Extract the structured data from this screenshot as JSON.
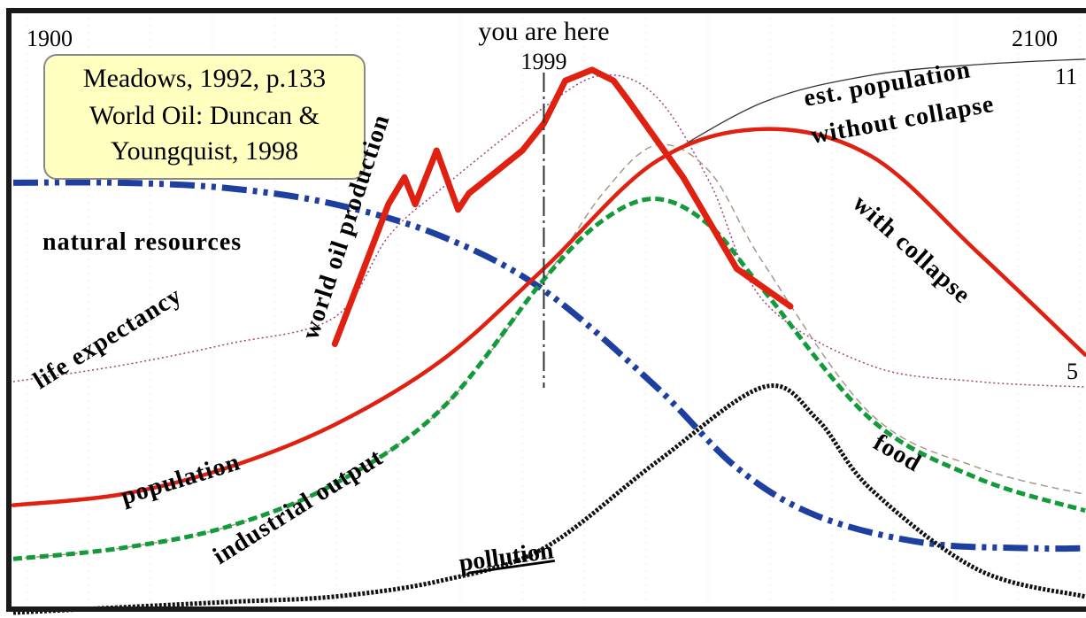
{
  "chart_data": {
    "type": "line",
    "title": "",
    "x_range": [
      1900,
      2100
    ],
    "x_ticks": [
      "1900",
      "2100"
    ],
    "marker": {
      "label": "you are here",
      "year_label": "1999",
      "x": 1999
    },
    "citation": [
      "Meadows, 1992, p.133",
      "World Oil: Duncan &",
      "Youngquist, 1998"
    ],
    "right_edge_labels": {
      "top": "11",
      "bottom": "5"
    },
    "annotations": {
      "est_population": [
        "est. population",
        "without collapse"
      ],
      "with_collapse": "with collapse"
    },
    "colors": {
      "frame": "#1a1a1a",
      "citation_box": "#ffffc0",
      "population": "#e02010",
      "oil": "#e02010",
      "natural_resources": "#1f3fa0",
      "food": "#139a3a",
      "pollution": "#111111",
      "life_expectancy": "#a0407a",
      "industrial_output": "#a89888",
      "est_population": "#333333"
    },
    "series": [
      {
        "name": "natural resources",
        "x": [
          1900,
          1920,
          1940,
          1960,
          1980,
          1999,
          2020,
          2035,
          2050,
          2070,
          2090,
          2100
        ],
        "y": [
          0.8,
          0.8,
          0.79,
          0.76,
          0.7,
          0.6,
          0.42,
          0.27,
          0.18,
          0.13,
          0.12,
          0.12
        ]
      },
      {
        "name": "population",
        "x": [
          1900,
          1920,
          1940,
          1960,
          1980,
          1999,
          2020,
          2040,
          2060,
          2080,
          2100
        ],
        "y": [
          0.2,
          0.22,
          0.27,
          0.35,
          0.47,
          0.64,
          0.84,
          0.9,
          0.85,
          0.67,
          0.48
        ]
      },
      {
        "name": "industrial output",
        "x": [
          1900,
          1920,
          1940,
          1960,
          1980,
          1999,
          2010,
          2020,
          2030,
          2040,
          2060,
          2080,
          2100
        ],
        "y": [
          0.1,
          0.12,
          0.16,
          0.24,
          0.38,
          0.62,
          0.78,
          0.87,
          0.82,
          0.65,
          0.37,
          0.27,
          0.22
        ]
      },
      {
        "name": "food",
        "x": [
          1900,
          1920,
          1940,
          1960,
          1980,
          1999,
          2010,
          2020,
          2030,
          2040,
          2060,
          2080,
          2100
        ],
        "y": [
          0.1,
          0.12,
          0.16,
          0.24,
          0.38,
          0.62,
          0.73,
          0.77,
          0.72,
          0.6,
          0.36,
          0.25,
          0.19
        ]
      },
      {
        "name": "pollution",
        "x": [
          1900,
          1920,
          1940,
          1960,
          1980,
          1999,
          2020,
          2040,
          2050,
          2060,
          2080,
          2100
        ],
        "y": [
          0.0,
          0.01,
          0.02,
          0.03,
          0.06,
          0.12,
          0.28,
          0.42,
          0.36,
          0.23,
          0.08,
          0.03
        ]
      },
      {
        "name": "life expectancy",
        "x": [
          1900,
          1920,
          1940,
          1960,
          1970,
          1980,
          1999,
          2010,
          2020,
          2030,
          2040,
          2060,
          2080,
          2100
        ],
        "y": [
          0.43,
          0.46,
          0.5,
          0.55,
          0.7,
          0.79,
          0.94,
          1.0,
          0.96,
          0.8,
          0.58,
          0.46,
          0.43,
          0.42
        ]
      },
      {
        "name": "world oil production",
        "x": [
          1960,
          1965,
          1970,
          1973,
          1975,
          1979,
          1983,
          1985,
          1990,
          1995,
          1999,
          2003,
          2008,
          2012,
          2015,
          2025,
          2035,
          2045
        ],
        "y": [
          0.5,
          0.63,
          0.76,
          0.81,
          0.76,
          0.86,
          0.75,
          0.78,
          0.82,
          0.86,
          0.91,
          0.99,
          1.01,
          0.99,
          0.95,
          0.81,
          0.64,
          0.57
        ]
      },
      {
        "name": "est. population without collapse",
        "x": [
          2020,
          2040,
          2060,
          2080,
          2100
        ],
        "y": [
          0.84,
          0.95,
          1.0,
          1.02,
          1.03
        ]
      }
    ]
  }
}
